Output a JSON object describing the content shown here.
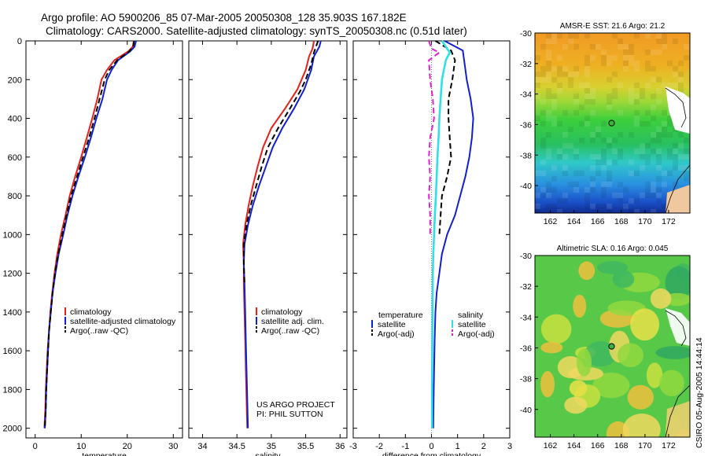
{
  "header": {
    "title_line1": "Argo profile: AO 5900206_85 07-Mar-2005 20050308_128 35.903S 167.182E",
    "title_line2": "Climatology: CARS2000. Satellite-adjusted climatology: synTS_20050308.nc (0.51d later)"
  },
  "credit": {
    "line1": "US ARGO PROJECT",
    "line2": "PI: PHIL SUTTON",
    "stamp": "CSIRO 05-Aug-2005 14:44:14"
  },
  "colors": {
    "climatology": "#e8201a",
    "satellite": "#1020d0",
    "argo": "#000000",
    "salinity_satellite": "#30e0e8",
    "salinity_argo": "#e020d0"
  },
  "chart_data": [
    {
      "type": "line",
      "title": "",
      "xlabel": "temperature",
      "ylabel": "",
      "xlim": [
        -2,
        32
      ],
      "ylim": [
        2050,
        0
      ],
      "xticks": [
        "0",
        "10",
        "20",
        "30"
      ],
      "yticks": [
        "0",
        "200",
        "400",
        "600",
        "800",
        "1000",
        "1200",
        "1400",
        "1600",
        "1800",
        "2000"
      ],
      "legend_position": "lower-center",
      "series": [
        {
          "name": "climatology",
          "style": "solid",
          "points": [
            [
              21.4,
              0
            ],
            [
              21.2,
              30
            ],
            [
              20.2,
              55
            ],
            [
              17.2,
              100
            ],
            [
              15.6,
              150
            ],
            [
              14.4,
              200
            ],
            [
              13.5,
              300
            ],
            [
              12.4,
              400
            ],
            [
              11.2,
              500
            ],
            [
              10.0,
              600
            ],
            [
              8.7,
              700
            ],
            [
              7.5,
              800
            ],
            [
              6.6,
              900
            ],
            [
              5.6,
              1000
            ],
            [
              4.8,
              1100
            ],
            [
              4.2,
              1200
            ],
            [
              3.7,
              1300
            ],
            [
              3.3,
              1400
            ],
            [
              3.0,
              1500
            ],
            [
              2.7,
              1600
            ],
            [
              2.5,
              1700
            ],
            [
              2.3,
              1800
            ],
            [
              2.2,
              1900
            ],
            [
              2.0,
              2000
            ]
          ]
        },
        {
          "name": "satellite-adjusted climatology",
          "style": "solid",
          "points": [
            [
              21.9,
              0
            ],
            [
              21.6,
              30
            ],
            [
              20.6,
              55
            ],
            [
              18.0,
              100
            ],
            [
              16.6,
              150
            ],
            [
              15.6,
              200
            ],
            [
              14.6,
              300
            ],
            [
              13.3,
              400
            ],
            [
              12.1,
              500
            ],
            [
              10.8,
              600
            ],
            [
              9.4,
              700
            ],
            [
              8.1,
              800
            ],
            [
              7.0,
              900
            ],
            [
              6.1,
              1000
            ],
            [
              5.1,
              1100
            ],
            [
              4.4,
              1200
            ],
            [
              3.8,
              1300
            ],
            [
              3.4,
              1400
            ],
            [
              3.0,
              1500
            ],
            [
              2.8,
              1600
            ],
            [
              2.6,
              1700
            ],
            [
              2.4,
              1800
            ],
            [
              2.3,
              1900
            ],
            [
              2.1,
              2000
            ]
          ]
        },
        {
          "name": "Argo(..raw -QC)",
          "style": "dashed",
          "points": [
            [
              21.5,
              0
            ],
            [
              21.3,
              30
            ],
            [
              20.4,
              55
            ],
            [
              17.8,
              100
            ],
            [
              16.1,
              150
            ],
            [
              15.1,
              200
            ],
            [
              14.0,
              300
            ],
            [
              12.9,
              400
            ],
            [
              11.7,
              500
            ],
            [
              10.4,
              600
            ],
            [
              9.1,
              700
            ],
            [
              7.8,
              800
            ],
            [
              6.8,
              900
            ],
            [
              5.9,
              1000
            ],
            [
              5.0,
              1100
            ],
            [
              4.3,
              1200
            ],
            [
              3.8,
              1300
            ],
            [
              3.4,
              1400
            ],
            [
              3.0,
              1500
            ],
            [
              2.8,
              1600
            ],
            [
              2.6,
              1700
            ],
            [
              2.4,
              1800
            ],
            [
              2.3,
              1900
            ],
            [
              2.1,
              2000
            ]
          ]
        }
      ]
    },
    {
      "type": "line",
      "title": "",
      "xlabel": "salinity",
      "ylabel": "",
      "xlim": [
        33.8,
        36.1
      ],
      "ylim": [
        2050,
        0
      ],
      "xticks": [
        "34",
        "34.5",
        "35",
        "35.5",
        "36"
      ],
      "legend_position": "lower-center",
      "series": [
        {
          "name": "climatology",
          "style": "solid",
          "points": [
            [
              35.62,
              0
            ],
            [
              35.6,
              40
            ],
            [
              35.55,
              80
            ],
            [
              35.5,
              150
            ],
            [
              35.38,
              250
            ],
            [
              35.2,
              350
            ],
            [
              35.0,
              450
            ],
            [
              34.88,
              550
            ],
            [
              34.8,
              650
            ],
            [
              34.73,
              750
            ],
            [
              34.67,
              850
            ],
            [
              34.62,
              950
            ],
            [
              34.59,
              1050
            ],
            [
              34.6,
              1150
            ],
            [
              34.6,
              1250
            ],
            [
              34.61,
              1400
            ],
            [
              34.62,
              1550
            ],
            [
              34.63,
              1700
            ],
            [
              34.64,
              1850
            ],
            [
              34.65,
              2000
            ]
          ]
        },
        {
          "name": "satellite adj. clim.",
          "style": "solid",
          "points": [
            [
              35.72,
              0
            ],
            [
              35.7,
              30
            ],
            [
              35.62,
              80
            ],
            [
              35.58,
              150
            ],
            [
              35.48,
              250
            ],
            [
              35.33,
              350
            ],
            [
              35.16,
              450
            ],
            [
              35.02,
              550
            ],
            [
              34.92,
              650
            ],
            [
              34.82,
              750
            ],
            [
              34.73,
              850
            ],
            [
              34.66,
              950
            ],
            [
              34.61,
              1050
            ],
            [
              34.6,
              1150
            ],
            [
              34.61,
              1250
            ],
            [
              34.62,
              1400
            ],
            [
              34.63,
              1550
            ],
            [
              34.64,
              1700
            ],
            [
              34.65,
              1850
            ],
            [
              34.66,
              2000
            ]
          ]
        },
        {
          "name": "Argo(..raw -QC)",
          "style": "dashed",
          "points": [
            [
              35.68,
              0
            ],
            [
              35.62,
              60
            ],
            [
              35.58,
              120
            ],
            [
              35.5,
              200
            ],
            [
              35.42,
              260
            ],
            [
              35.27,
              350
            ],
            [
              35.1,
              450
            ],
            [
              34.95,
              550
            ],
            [
              34.86,
              650
            ],
            [
              34.78,
              750
            ],
            [
              34.7,
              850
            ],
            [
              34.64,
              950
            ],
            [
              34.6,
              1050
            ],
            [
              34.6,
              1150
            ],
            [
              34.61,
              1250
            ]
          ]
        }
      ]
    },
    {
      "type": "line",
      "title": "",
      "xlabel": "difference from climatology",
      "ylabel": "",
      "xlim": [
        -3,
        3
      ],
      "ylim": [
        2050,
        0
      ],
      "xticks": [
        "-3",
        "-2",
        "-1",
        "0",
        "1",
        "2",
        "3"
      ],
      "legend_position": "lower-center",
      "legend_left_header": "temperature",
      "legend_right_header": "salinity",
      "series": [
        {
          "name": "satellite",
          "group": "temperature",
          "style": "solid",
          "points": [
            [
              0.5,
              0
            ],
            [
              1.2,
              50
            ],
            [
              1.25,
              100
            ],
            [
              1.35,
              200
            ],
            [
              1.5,
              300
            ],
            [
              1.6,
              400
            ],
            [
              1.55,
              500
            ],
            [
              1.45,
              600
            ],
            [
              1.3,
              700
            ],
            [
              1.1,
              800
            ],
            [
              0.9,
              900
            ],
            [
              0.6,
              1000
            ],
            [
              0.4,
              1100
            ],
            [
              0.3,
              1200
            ],
            [
              0.2,
              1300
            ],
            [
              0.15,
              1400
            ],
            [
              0.12,
              1550
            ],
            [
              0.1,
              1700
            ],
            [
              0.08,
              1850
            ],
            [
              0.07,
              2000
            ]
          ]
        },
        {
          "name": "Argo(-adj)",
          "group": "temperature",
          "style": "dashed",
          "points": [
            [
              0.15,
              0
            ],
            [
              0.75,
              50
            ],
            [
              0.9,
              100
            ],
            [
              0.8,
              200
            ],
            [
              0.65,
              300
            ],
            [
              0.65,
              400
            ],
            [
              0.7,
              500
            ],
            [
              0.75,
              600
            ],
            [
              0.6,
              700
            ],
            [
              0.4,
              800
            ],
            [
              0.35,
              900
            ],
            [
              0.3,
              1000
            ]
          ]
        },
        {
          "name": "satellite",
          "group": "salinity",
          "style": "solid",
          "points": [
            [
              0.4,
              0
            ],
            [
              0.6,
              40
            ],
            [
              0.7,
              60
            ],
            [
              0.55,
              100
            ],
            [
              0.4,
              200
            ],
            [
              0.35,
              300
            ],
            [
              0.3,
              400
            ],
            [
              0.27,
              500
            ],
            [
              0.23,
              600
            ],
            [
              0.2,
              700
            ],
            [
              0.17,
              800
            ],
            [
              0.13,
              900
            ],
            [
              0.1,
              1000
            ],
            [
              0.07,
              1100
            ],
            [
              0.05,
              1200
            ],
            [
              0.04,
              1400
            ],
            [
              0.03,
              1600
            ],
            [
              0.02,
              1800
            ],
            [
              0.02,
              2000
            ]
          ]
        },
        {
          "name": "Argo(-adj)",
          "group": "salinity",
          "style": "dashed",
          "points": [
            [
              -0.1,
              0
            ],
            [
              0.0,
              40
            ],
            [
              0.3,
              60
            ],
            [
              -0.1,
              100
            ],
            [
              -0.05,
              200
            ],
            [
              0.05,
              300
            ],
            [
              0.1,
              400
            ],
            [
              -0.05,
              500
            ],
            [
              -0.1,
              600
            ],
            [
              -0.05,
              700
            ],
            [
              -0.1,
              800
            ],
            [
              -0.05,
              900
            ],
            [
              -0.05,
              1000
            ]
          ]
        }
      ]
    },
    {
      "type": "heatmap",
      "title": "AMSR-E SST: 21.6 Argo: 21.2",
      "xlabel": "",
      "ylabel": "",
      "xlim": [
        160.7,
        173.8
      ],
      "ylim": [
        -41.8,
        -30
      ],
      "xticks": [
        "162",
        "164",
        "166",
        "168",
        "170",
        "172"
      ],
      "yticks": [
        "-30",
        "-32",
        "-34",
        "-36",
        "-38",
        "-40"
      ],
      "marker": {
        "lon": 167.182,
        "lat": -35.903
      }
    },
    {
      "type": "heatmap",
      "title": "Altimetric SLA: 0.16 Argo: 0.045",
      "xlabel": "",
      "ylabel": "",
      "xlim": [
        160.7,
        173.8
      ],
      "ylim": [
        -41.8,
        -30
      ],
      "xticks": [
        "162",
        "164",
        "166",
        "168",
        "170",
        "172"
      ],
      "yticks": [
        "-30",
        "-32",
        "-34",
        "-36",
        "-38",
        "-40"
      ],
      "marker": {
        "lon": 167.182,
        "lat": -35.903
      }
    }
  ]
}
